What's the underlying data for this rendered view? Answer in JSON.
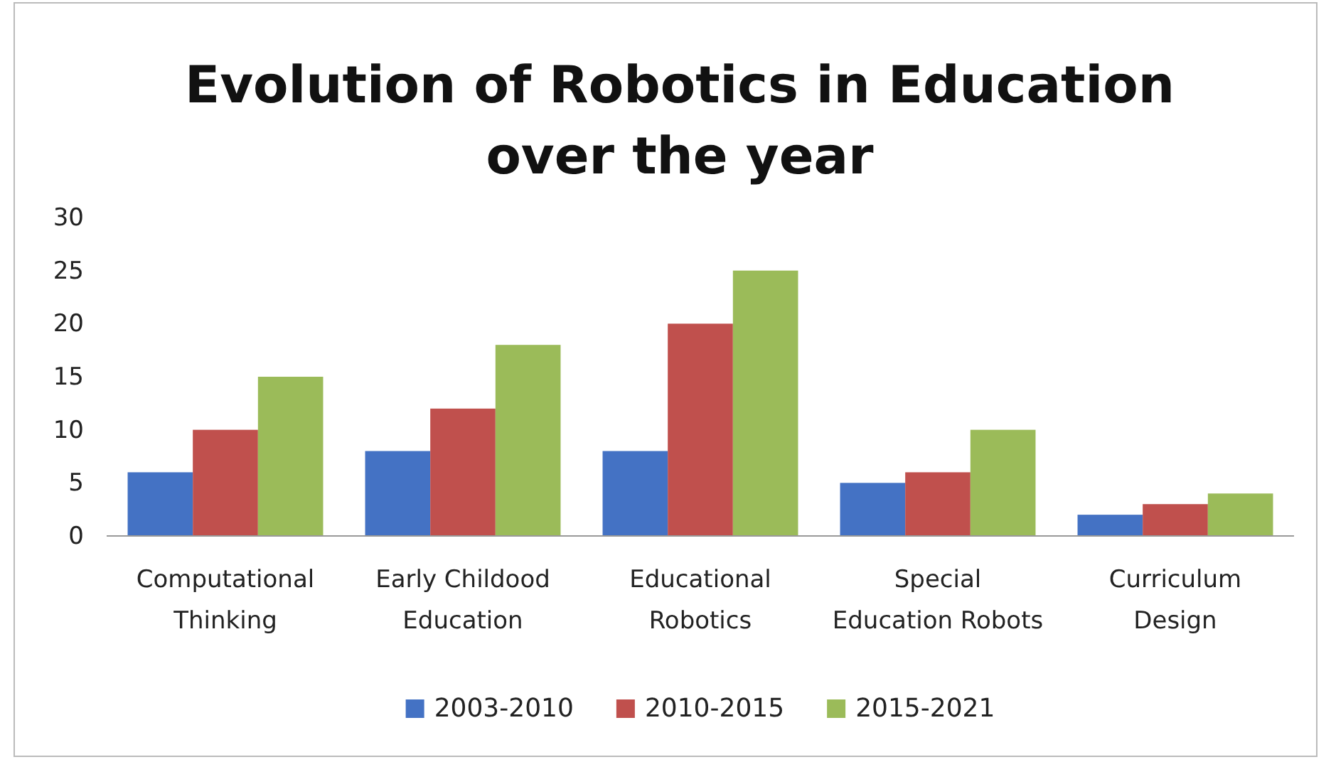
{
  "chart_data": {
    "type": "bar",
    "title": "Evolution of Robotics in Education over the year",
    "categories": [
      "Computational Thinking",
      "Early Childood Education",
      "Educational Robotics",
      "Special Education Robots",
      "Curriculum Design"
    ],
    "series": [
      {
        "name": "2003-2010",
        "color": "#4472c4",
        "values": [
          6,
          8,
          8,
          5,
          2
        ]
      },
      {
        "name": "2010-2015",
        "color": "#c0504d",
        "values": [
          10,
          12,
          20,
          6,
          3
        ]
      },
      {
        "name": "2015-2021",
        "color": "#9bbb59",
        "values": [
          15,
          18,
          25,
          10,
          4
        ]
      }
    ],
    "ylim": [
      0,
      30
    ],
    "yticks": [
      0,
      5,
      10,
      15,
      20,
      25,
      30
    ],
    "grid": false,
    "legend": "bottom"
  }
}
